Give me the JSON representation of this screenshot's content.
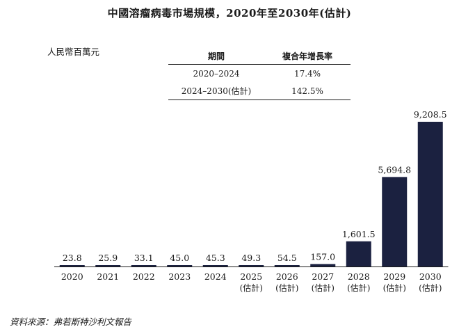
{
  "title": "中國溶瘤病毒市場規模，2020年至2030年(估計)",
  "unit_label": "人民幣百萬元",
  "cagr_table": {
    "headers": [
      "期間",
      "複合年增長率"
    ],
    "rows": [
      [
        "2020–2024",
        "17.4%"
      ],
      [
        "2024–2030(估計)",
        "142.5%"
      ]
    ]
  },
  "source": "資料來源：弗若斯特沙利文報告",
  "colors": {
    "bar": "#1b2140",
    "text": "#1a1a1a"
  },
  "chart_data": {
    "type": "bar",
    "title": "中國溶瘤病毒市場規模，2020年至2030年(估計)",
    "ylabel": "人民幣百萬元",
    "categories": [
      "2020",
      "2021",
      "2022",
      "2023",
      "2024",
      "2025",
      "2026",
      "2027",
      "2028",
      "2029",
      "2030"
    ],
    "category_sublabels": [
      "",
      "",
      "",
      "",
      "",
      "(估計)",
      "(估計)",
      "(估計)",
      "(估計)",
      "(估計)",
      "(估計)"
    ],
    "values": [
      23.8,
      25.9,
      33.1,
      45.0,
      45.3,
      49.3,
      54.5,
      157.0,
      1601.5,
      5694.8,
      9208.5
    ],
    "value_labels": [
      "23.8",
      "25.9",
      "33.1",
      "45.0",
      "45.3",
      "49.3",
      "54.5",
      "157.0",
      "1,601.5",
      "5,694.8",
      "9,208.5"
    ],
    "ylim": [
      0,
      9208.5
    ],
    "grid": false,
    "legend": "none"
  }
}
